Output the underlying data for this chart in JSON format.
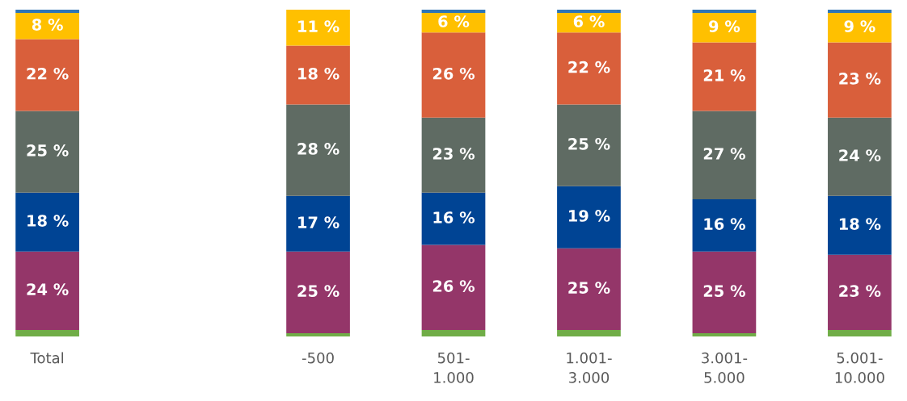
{
  "chart_data": {
    "type": "bar",
    "stacked": true,
    "data_labels": false,
    "grid": false,
    "legend": false,
    "tick_labels": "x",
    "categories": [
      "Total",
      null,
      "-500",
      "501-\n1.000",
      "1.001-\n3.000",
      "3.001-\n5.000",
      "5.001-\n10.000"
    ],
    "series": [
      {
        "color": "#70ad47",
        "values": [
          2,
          null,
          1,
          2,
          2,
          1,
          2
        ],
        "value_labels": [
          null,
          null,
          null,
          null,
          null,
          null,
          null
        ]
      },
      {
        "color": "#943669",
        "values": [
          24,
          null,
          25,
          26,
          25,
          25,
          23
        ],
        "value_labels": [
          "24 %",
          null,
          "25 %",
          "26 %",
          "25 %",
          "25 %",
          "23 %"
        ]
      },
      {
        "color": "#004494",
        "values": [
          18,
          null,
          17,
          16,
          19,
          16,
          18
        ],
        "value_labels": [
          "18 %",
          null,
          "17 %",
          "16 %",
          "19 %",
          "16 %",
          "18 %"
        ]
      },
      {
        "color": "#5f6b63",
        "values": [
          25,
          null,
          28,
          23,
          25,
          27,
          24
        ],
        "value_labels": [
          "25 %",
          null,
          "28 %",
          "23 %",
          "25 %",
          "27 %",
          "24 %"
        ]
      },
      {
        "color": "#d95f3b",
        "values": [
          22,
          null,
          18,
          26,
          22,
          21,
          23
        ],
        "value_labels": [
          "22 %",
          null,
          "18 %",
          "26 %",
          "22 %",
          "21 %",
          "23 %"
        ]
      },
      {
        "color": "#ffc000",
        "values": [
          8,
          null,
          11,
          6,
          6,
          9,
          9
        ],
        "value_labels": [
          "8 %",
          null,
          "11 %",
          "6 %",
          "6 %",
          "9 %",
          "9 %"
        ]
      },
      {
        "color": "#2e75b6",
        "values": [
          1,
          null,
          0,
          1,
          1,
          1,
          1
        ],
        "value_labels": [
          null,
          null,
          null,
          null,
          null,
          null,
          null
        ]
      }
    ]
  }
}
